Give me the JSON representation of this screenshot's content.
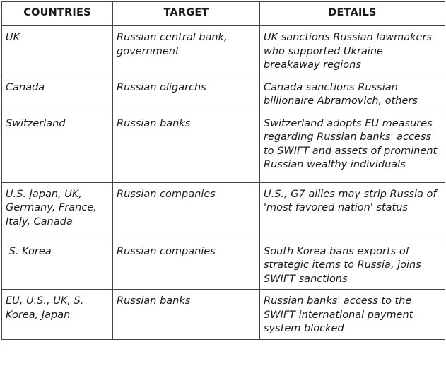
{
  "table": {
    "headers": [
      "COUNTRIES",
      "TARGET",
      "DETAILS"
    ],
    "rows": [
      {
        "countries": "UK",
        "target": "Russian central bank, government",
        "details": "UK sanctions Russian lawmakers who supported Ukraine breakaway regions"
      },
      {
        "countries": "Canada",
        "target": "Russian oligarchs",
        "details": "Canada sanctions Russian billionaire Abramovich, others"
      },
      {
        "countries": "Switzerland",
        "target": "Russian banks",
        "details": "Switzerland adopts EU measures regarding Russian banks' access to SWIFT and assets of prominent Russian wealthy individuals"
      },
      {
        "countries": "U.S. Japan, UK, Germany, France, Italy, Canada",
        "target": "Russian companies",
        "details": "U.S., G7 allies may strip Russia of 'most favored nation' status"
      },
      {
        "countries": " S. Korea",
        "target": "Russian companies",
        "details": "South Korea bans exports of strategic items to Russia, joins SWIFT sanctions"
      },
      {
        "countries": "EU, U.S., UK, S. Korea, Japan",
        "target": "Russian banks",
        "details": "Russian banks' access to the SWIFT international payment system blocked"
      }
    ]
  }
}
